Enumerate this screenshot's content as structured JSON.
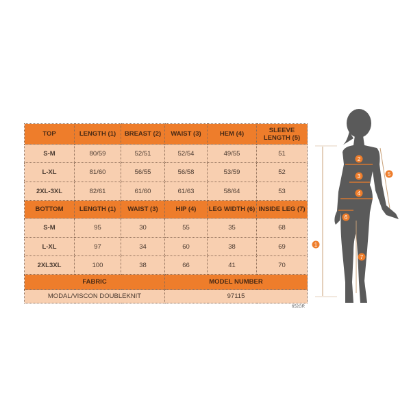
{
  "top": {
    "headers": [
      "TOP",
      "LENGTH (1)",
      "BREAST (2)",
      "WAIST (3)",
      "HEM (4)",
      "SLEEVE LENGTH (5)"
    ],
    "rows": [
      [
        "S-M",
        "80/59",
        "52/51",
        "52/54",
        "49/55",
        "51"
      ],
      [
        "L-XL",
        "81/60",
        "56/55",
        "56/58",
        "53/59",
        "52"
      ],
      [
        "2XL-3XL",
        "82/61",
        "61/60",
        "61/63",
        "58/64",
        "53"
      ]
    ]
  },
  "bottom": {
    "headers": [
      "BOTTOM",
      "LENGTH (1)",
      "WAIST (3)",
      "HIP (4)",
      "LEG WIDTH (6)",
      "INSIDE LEG (7)"
    ],
    "rows": [
      [
        "S-M",
        "95",
        "30",
        "55",
        "35",
        "68"
      ],
      [
        "L-XL",
        "97",
        "34",
        "60",
        "38",
        "69"
      ],
      [
        "2XL3XL",
        "100",
        "38",
        "66",
        "41",
        "70"
      ]
    ]
  },
  "fabric": {
    "label": "FABRIC",
    "value": "MODAL/VISCON DOUBLEKNIT"
  },
  "model": {
    "label": "MODEL NUMBER",
    "value": "97115"
  },
  "code": "652GR",
  "figure": {
    "markers": [
      "1",
      "2",
      "3",
      "4",
      "5",
      "6",
      "7"
    ]
  },
  "colors": {
    "header": "#ee7d2b",
    "cell": "#f8cfb0",
    "silhouette": "#5a5a5a",
    "marker": "#ee7d2b"
  }
}
